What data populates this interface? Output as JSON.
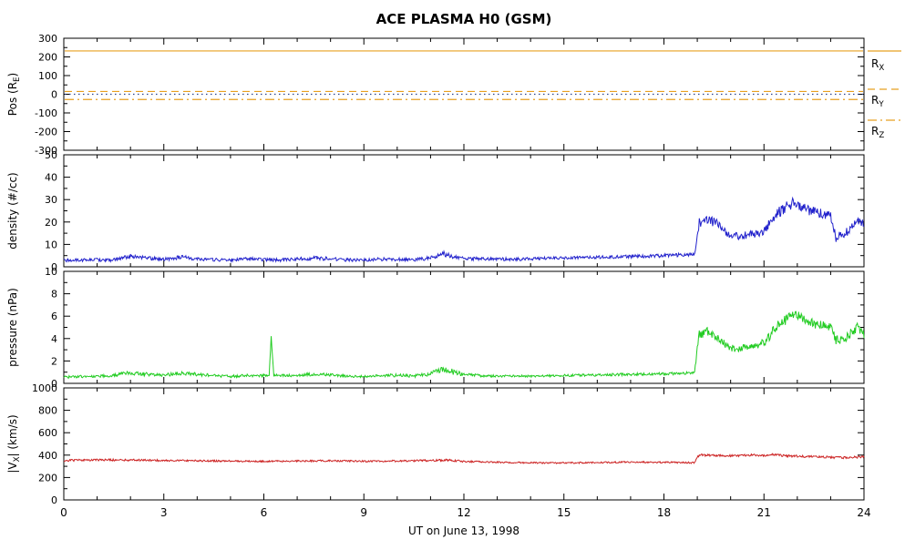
{
  "chart_data": {
    "type": "line",
    "title": "ACE PLASMA H0 (GSM)",
    "xlabel": "UT on June 13, 1998",
    "background": "#ffffff",
    "axis_color": "#000000",
    "x_range": [
      0,
      24
    ],
    "x_major_ticks": [
      0,
      3,
      6,
      9,
      12,
      15,
      18,
      21,
      24
    ],
    "x_minor_step": 1,
    "panels": [
      {
        "name": "position",
        "ylabel_parts": [
          {
            "t": "Pos (R"
          },
          {
            "t": "E",
            "sub": true
          },
          {
            "t": ")"
          }
        ],
        "y_range": [
          -300,
          300
        ],
        "y_ticks": [
          -300,
          -200,
          -100,
          0,
          100,
          200,
          300
        ],
        "lines": [
          {
            "label_parts": [
              {
                "t": "R"
              },
              {
                "t": "X",
                "sub": true
              }
            ],
            "value": 232,
            "style": "solid",
            "color": "#E8A020"
          },
          {
            "label_parts": [],
            "value": 0,
            "style": "dot",
            "color": "#27408B"
          },
          {
            "label_parts": [
              {
                "t": "R"
              },
              {
                "t": "Y",
                "sub": true
              }
            ],
            "value": 15,
            "style": "dash",
            "color": "#E8A020"
          },
          {
            "label_parts": [
              {
                "t": "R"
              },
              {
                "t": "Z",
                "sub": true
              }
            ],
            "value": -28,
            "style": "dashdot",
            "color": "#E8A020"
          }
        ]
      },
      {
        "name": "density",
        "ylabel_parts": [
          {
            "t": "density (#/cc)"
          }
        ],
        "y_range": [
          0,
          50
        ],
        "y_ticks": [
          0,
          10,
          20,
          30,
          40,
          50
        ],
        "series": {
          "color": "#2222CC",
          "keypoints": [
            [
              0,
              2.8,
              0.7
            ],
            [
              0.5,
              3.0,
              0.7
            ],
            [
              1,
              3.2,
              0.8
            ],
            [
              1.5,
              3.0,
              0.8
            ],
            [
              2,
              4.8,
              1.0
            ],
            [
              2.3,
              4.2,
              0.9
            ],
            [
              2.6,
              3.8,
              0.9
            ],
            [
              3,
              3.4,
              0.8
            ],
            [
              3.5,
              4.3,
              0.9
            ],
            [
              4,
              3.6,
              0.8
            ],
            [
              4.5,
              3.2,
              0.7
            ],
            [
              5,
              3.0,
              0.7
            ],
            [
              5.5,
              3.5,
              0.8
            ],
            [
              6,
              3.2,
              0.7
            ],
            [
              6.5,
              3.0,
              0.7
            ],
            [
              7,
              3.5,
              0.8
            ],
            [
              7.5,
              3.9,
              0.9
            ],
            [
              8,
              3.6,
              0.8
            ],
            [
              8.5,
              3.1,
              0.7
            ],
            [
              9,
              3.0,
              0.7
            ],
            [
              9.5,
              3.4,
              0.8
            ],
            [
              10,
              3.4,
              0.8
            ],
            [
              10.5,
              3.1,
              0.7
            ],
            [
              11,
              3.9,
              0.9
            ],
            [
              11.4,
              5.8,
              1.2
            ],
            [
              11.7,
              4.4,
              1.0
            ],
            [
              12,
              3.8,
              0.8
            ],
            [
              12.5,
              3.5,
              0.7
            ],
            [
              13,
              3.4,
              0.7
            ],
            [
              13.5,
              3.4,
              0.7
            ],
            [
              14,
              3.5,
              0.7
            ],
            [
              14.5,
              3.8,
              0.7
            ],
            [
              15,
              3.9,
              0.7
            ],
            [
              15.5,
              4.0,
              0.7
            ],
            [
              16,
              4.3,
              0.7
            ],
            [
              16.5,
              4.4,
              0.7
            ],
            [
              17,
              4.6,
              0.8
            ],
            [
              17.5,
              4.8,
              0.8
            ],
            [
              18,
              5.0,
              0.8
            ],
            [
              18.5,
              5.3,
              0.8
            ],
            [
              18.92,
              5.5,
              0.8
            ],
            [
              19.05,
              19.5,
              2.2
            ],
            [
              19.3,
              21,
              2.2
            ],
            [
              19.6,
              19.5,
              2.0
            ],
            [
              19.9,
              15,
              1.8
            ],
            [
              20.2,
              13.5,
              1.6
            ],
            [
              20.6,
              14.5,
              1.8
            ],
            [
              21,
              16,
              2.0
            ],
            [
              21.4,
              24,
              2.4
            ],
            [
              21.7,
              27,
              2.4
            ],
            [
              21.95,
              29,
              2.4
            ],
            [
              22.2,
              26,
              2.2
            ],
            [
              22.6,
              24,
              2.2
            ],
            [
              23,
              23,
              2.0
            ],
            [
              23.15,
              13,
              2.0
            ],
            [
              23.45,
              15,
              2.0
            ],
            [
              23.8,
              21,
              2.0
            ],
            [
              24,
              19,
              2.0
            ]
          ]
        }
      },
      {
        "name": "pressure",
        "ylabel_parts": [
          {
            "t": "pressure (nPa)"
          }
        ],
        "y_range": [
          0,
          10
        ],
        "y_ticks": [
          0,
          2,
          4,
          6,
          8,
          10
        ],
        "series": {
          "color": "#22CC22",
          "keypoints": [
            [
              0,
              0.55,
              0.12
            ],
            [
              0.5,
              0.6,
              0.12
            ],
            [
              1,
              0.65,
              0.12
            ],
            [
              1.5,
              0.7,
              0.14
            ],
            [
              2,
              0.95,
              0.18
            ],
            [
              2.3,
              0.85,
              0.16
            ],
            [
              3,
              0.72,
              0.14
            ],
            [
              3.5,
              0.9,
              0.18
            ],
            [
              4,
              0.8,
              0.15
            ],
            [
              4.5,
              0.7,
              0.12
            ],
            [
              5,
              0.62,
              0.12
            ],
            [
              5.5,
              0.7,
              0.12
            ],
            [
              6,
              0.7,
              0.12
            ],
            [
              6.16,
              0.7,
              0.1
            ],
            [
              6.22,
              4.2,
              0.1
            ],
            [
              6.3,
              0.72,
              0.1
            ],
            [
              7,
              0.7,
              0.12
            ],
            [
              7.5,
              0.82,
              0.15
            ],
            [
              8,
              0.75,
              0.13
            ],
            [
              8.5,
              0.65,
              0.12
            ],
            [
              9,
              0.6,
              0.1
            ],
            [
              9.5,
              0.7,
              0.12
            ],
            [
              10,
              0.72,
              0.15
            ],
            [
              10.5,
              0.65,
              0.12
            ],
            [
              11,
              0.85,
              0.2
            ],
            [
              11.4,
              1.3,
              0.3
            ],
            [
              11.7,
              1.0,
              0.25
            ],
            [
              12,
              0.8,
              0.15
            ],
            [
              12.5,
              0.7,
              0.12
            ],
            [
              13,
              0.65,
              0.1
            ],
            [
              14,
              0.65,
              0.1
            ],
            [
              15,
              0.7,
              0.1
            ],
            [
              16,
              0.75,
              0.12
            ],
            [
              17,
              0.8,
              0.12
            ],
            [
              18,
              0.85,
              0.12
            ],
            [
              18.5,
              0.9,
              0.12
            ],
            [
              18.92,
              0.95,
              0.12
            ],
            [
              19.05,
              4.4,
              0.45
            ],
            [
              19.3,
              4.6,
              0.45
            ],
            [
              19.6,
              4.0,
              0.4
            ],
            [
              19.9,
              3.3,
              0.35
            ],
            [
              20.2,
              3.0,
              0.3
            ],
            [
              20.6,
              3.4,
              0.35
            ],
            [
              21,
              3.6,
              0.4
            ],
            [
              21.4,
              5.2,
              0.5
            ],
            [
              21.7,
              5.8,
              0.5
            ],
            [
              21.95,
              6.2,
              0.5
            ],
            [
              22.2,
              5.6,
              0.45
            ],
            [
              22.6,
              5.3,
              0.45
            ],
            [
              23,
              5.1,
              0.4
            ],
            [
              23.15,
              3.8,
              0.4
            ],
            [
              23.45,
              4.1,
              0.4
            ],
            [
              23.8,
              5.0,
              0.4
            ],
            [
              24,
              4.4,
              0.4
            ]
          ]
        }
      },
      {
        "name": "speed",
        "ylabel_parts": [
          {
            "t": "|V"
          },
          {
            "t": "X",
            "sub": true
          },
          {
            "t": "| (km/s)"
          }
        ],
        "y_range": [
          0,
          1000
        ],
        "y_ticks": [
          0,
          200,
          400,
          600,
          800,
          1000
        ],
        "series": {
          "color": "#CC2222",
          "keypoints": [
            [
              0,
              352,
              9
            ],
            [
              1,
              358,
              9
            ],
            [
              2,
              356,
              9
            ],
            [
              3,
              352,
              8
            ],
            [
              4,
              350,
              8
            ],
            [
              5,
              347,
              8
            ],
            [
              6,
              344,
              7
            ],
            [
              7,
              347,
              8
            ],
            [
              8,
              350,
              8
            ],
            [
              9,
              345,
              7
            ],
            [
              10,
              348,
              8
            ],
            [
              11,
              352,
              9
            ],
            [
              11.5,
              356,
              10
            ],
            [
              12,
              344,
              8
            ],
            [
              13,
              336,
              7
            ],
            [
              14,
              332,
              7
            ],
            [
              15,
              330,
              7
            ],
            [
              16,
              334,
              7
            ],
            [
              17,
              338,
              7
            ],
            [
              18,
              336,
              7
            ],
            [
              18.92,
              332,
              7
            ],
            [
              19.05,
              400,
              11
            ],
            [
              19.5,
              398,
              10
            ],
            [
              20,
              394,
              10
            ],
            [
              20.5,
              400,
              10
            ],
            [
              21,
              398,
              10
            ],
            [
              21.3,
              404,
              10
            ],
            [
              21.6,
              394,
              10
            ],
            [
              22,
              390,
              10
            ],
            [
              22.5,
              386,
              10
            ],
            [
              23,
              381,
              10
            ],
            [
              23.5,
              376,
              10
            ],
            [
              24,
              386,
              10
            ]
          ]
        }
      }
    ]
  }
}
